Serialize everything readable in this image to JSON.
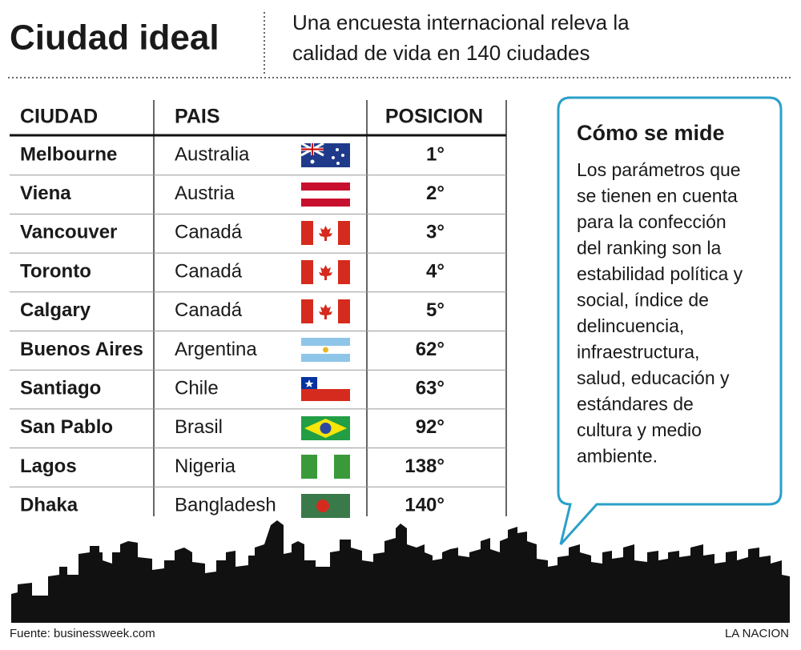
{
  "header": {
    "title": "Ciudad ideal",
    "subtitle_lines": [
      "Una encuesta internacional releva la",
      "calidad de vida en 140 ciudades"
    ]
  },
  "table": {
    "columns": [
      "CIUDAD",
      "PAIS",
      "POSICION"
    ],
    "rows": [
      [
        "Melbourne",
        "Australia",
        "1°"
      ],
      [
        "Viena",
        "Austria",
        "2°"
      ],
      [
        "Vancouver",
        "Canadá",
        "3°"
      ],
      [
        "Toronto",
        "Canadá",
        "4°"
      ],
      [
        "Calgary",
        "Canadá",
        "5°"
      ],
      [
        "Buenos Aires",
        "Argentina",
        "62°"
      ],
      [
        "Santiago",
        "Chile",
        "63°"
      ],
      [
        "San Pablo",
        "Brasil",
        "92°"
      ],
      [
        "Lagos",
        "Nigeria",
        "138°"
      ],
      [
        "Dhaka",
        "Bangladesh",
        "140°"
      ]
    ]
  },
  "sidebar": {
    "title": "Cómo se mide",
    "body_lines": [
      "Los parámetros que",
      "se tienen en cuenta",
      "para la confección",
      "del ranking son la",
      "estabilidad política y",
      "social, índice de",
      "delincuencia,",
      "infraestructura,",
      "salud, educación y",
      "estándares de",
      "cultura y medio",
      "ambiente."
    ]
  },
  "footer": {
    "source": "Fuente: businessweek.com",
    "brand": "LA NACION"
  }
}
